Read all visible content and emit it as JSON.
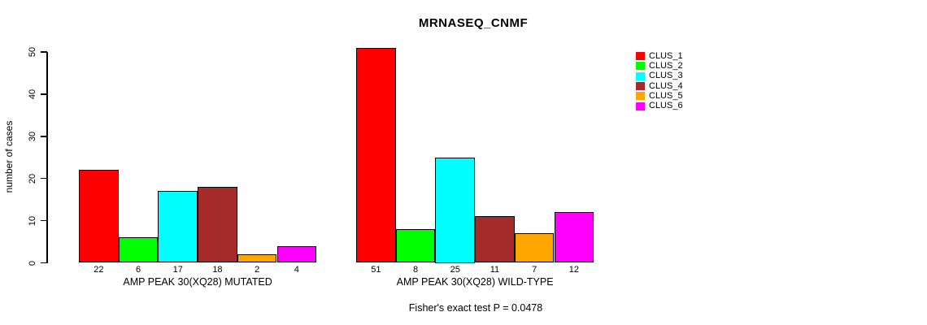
{
  "title": "MRNASEQ_CNMF",
  "ylabel": "number of cases",
  "subtitle": "Fisher's exact test P = 0.0478",
  "legend": {
    "position": "right",
    "entries": [
      {
        "label": "CLUS_1",
        "color": "#FF0000"
      },
      {
        "label": "CLUS_2",
        "color": "#00FF00"
      },
      {
        "label": "CLUS_3",
        "color": "#00FFFF"
      },
      {
        "label": "CLUS_4",
        "color": "#A52A2A"
      },
      {
        "label": "CLUS_5",
        "color": "#FFA500"
      },
      {
        "label": "CLUS_6",
        "color": "#FF00FF"
      }
    ]
  },
  "chart_data": {
    "type": "bar",
    "title": "MRNASEQ_CNMF",
    "xlabel": "",
    "ylabel": "number of cases",
    "ylim": [
      0,
      50
    ],
    "yticks": [
      0,
      10,
      20,
      30,
      40,
      50
    ],
    "grid": false,
    "legend_position": "right-outside",
    "series_labels": [
      "CLUS_1",
      "CLUS_2",
      "CLUS_3",
      "CLUS_4",
      "CLUS_5",
      "CLUS_6"
    ],
    "colors": [
      "#FF0000",
      "#00FF00",
      "#00FFFF",
      "#A52A2A",
      "#FFA500",
      "#FF00FF"
    ],
    "groups": [
      {
        "label": "AMP PEAK 30(XQ28) MUTATED",
        "values": [
          22,
          6,
          17,
          18,
          2,
          4
        ],
        "value_labels": [
          "22",
          "6",
          "17",
          "18",
          "2",
          "4"
        ]
      },
      {
        "label": "AMP PEAK 30(XQ28) WILD-TYPE",
        "values": [
          51,
          8,
          25,
          11,
          7,
          12
        ],
        "value_labels": [
          "51",
          "8",
          "25",
          "11",
          "7",
          "12"
        ]
      }
    ],
    "annotation": "Fisher's exact test P = 0.0478"
  }
}
